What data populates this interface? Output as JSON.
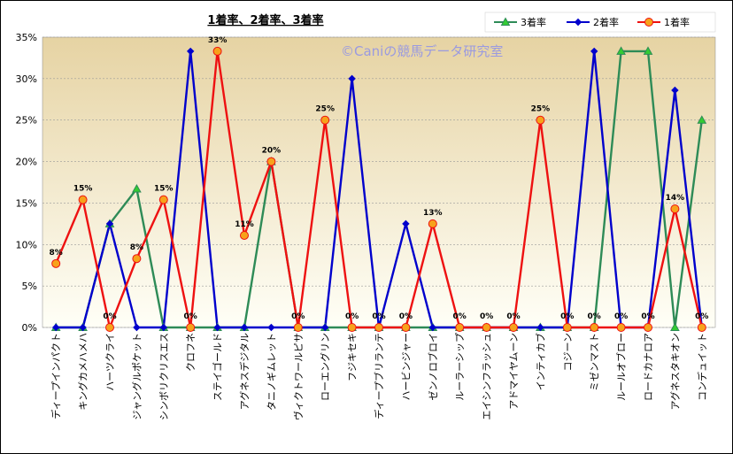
{
  "chart_data": {
    "type": "line",
    "title": "1着率、2着率、3着率",
    "watermark": "©Caniの競馬データ研究室",
    "categories": [
      "ディープインパクト",
      "キングカメハメハ",
      "ハーツクライ",
      "ジャングルポケット",
      "シンボリクリスエス",
      "クロフネ",
      "ステイゴールド",
      "アグネスデジタル",
      "タニノギムレット",
      "ヴィクトワールピサ",
      "ローエングリン",
      "フジキセキ",
      "ディープブリランテ",
      "ハービンジャー",
      "ゼンノロブロイ",
      "ルーラーシップ",
      "エイシンフラッシュ",
      "アドマイヤムーン",
      "インティカブ",
      "コジーン",
      "ミゼンマスト",
      "ルールオブロー",
      "ロードカナロア",
      "アグネスタキオン",
      "コンデュイット"
    ],
    "ylim": [
      0,
      35
    ],
    "yticks": [
      "0%",
      "5%",
      "10%",
      "15%",
      "20%",
      "25%",
      "30%",
      "35%"
    ],
    "legend_position": "top-right",
    "series": [
      {
        "name": "3着率",
        "color": "#2e8b57",
        "marker": "triangle",
        "marker_fill": "#33cc33",
        "values": [
          0,
          0,
          12.5,
          16.7,
          0,
          0,
          0,
          0,
          20,
          0,
          0,
          0,
          0,
          0,
          0,
          0,
          0,
          0,
          0,
          0,
          0,
          33.3,
          33.3,
          0,
          25
        ]
      },
      {
        "name": "2着率",
        "color": "#0000cc",
        "marker": "diamond",
        "marker_fill": "#0000cc",
        "values": [
          0,
          0,
          12.5,
          0,
          0,
          33.3,
          0,
          0,
          0,
          0,
          0,
          30,
          0,
          12.5,
          0,
          0,
          0,
          0,
          0,
          0,
          33.3,
          0,
          0,
          28.6,
          0
        ]
      },
      {
        "name": "1着率",
        "color": "#ee1111",
        "marker": "circle",
        "marker_fill": "#f7a21b",
        "values": [
          7.7,
          15.4,
          0,
          8.3,
          15.4,
          0,
          33.3,
          11.1,
          20,
          0,
          25,
          0,
          0,
          0,
          12.5,
          0,
          0,
          0,
          25,
          0,
          0,
          0,
          0,
          14.3,
          0
        ],
        "data_labels": [
          "8%",
          "15%",
          "0%",
          "8%",
          "15%",
          "0%",
          "33%",
          "11%",
          "20%",
          "0%",
          "25%",
          "0%",
          "0%",
          "0%",
          "13%",
          "0%",
          "0%",
          "0%",
          "25%",
          "0%",
          "0%",
          "0%",
          "0%",
          "14%",
          "0%"
        ]
      }
    ]
  }
}
